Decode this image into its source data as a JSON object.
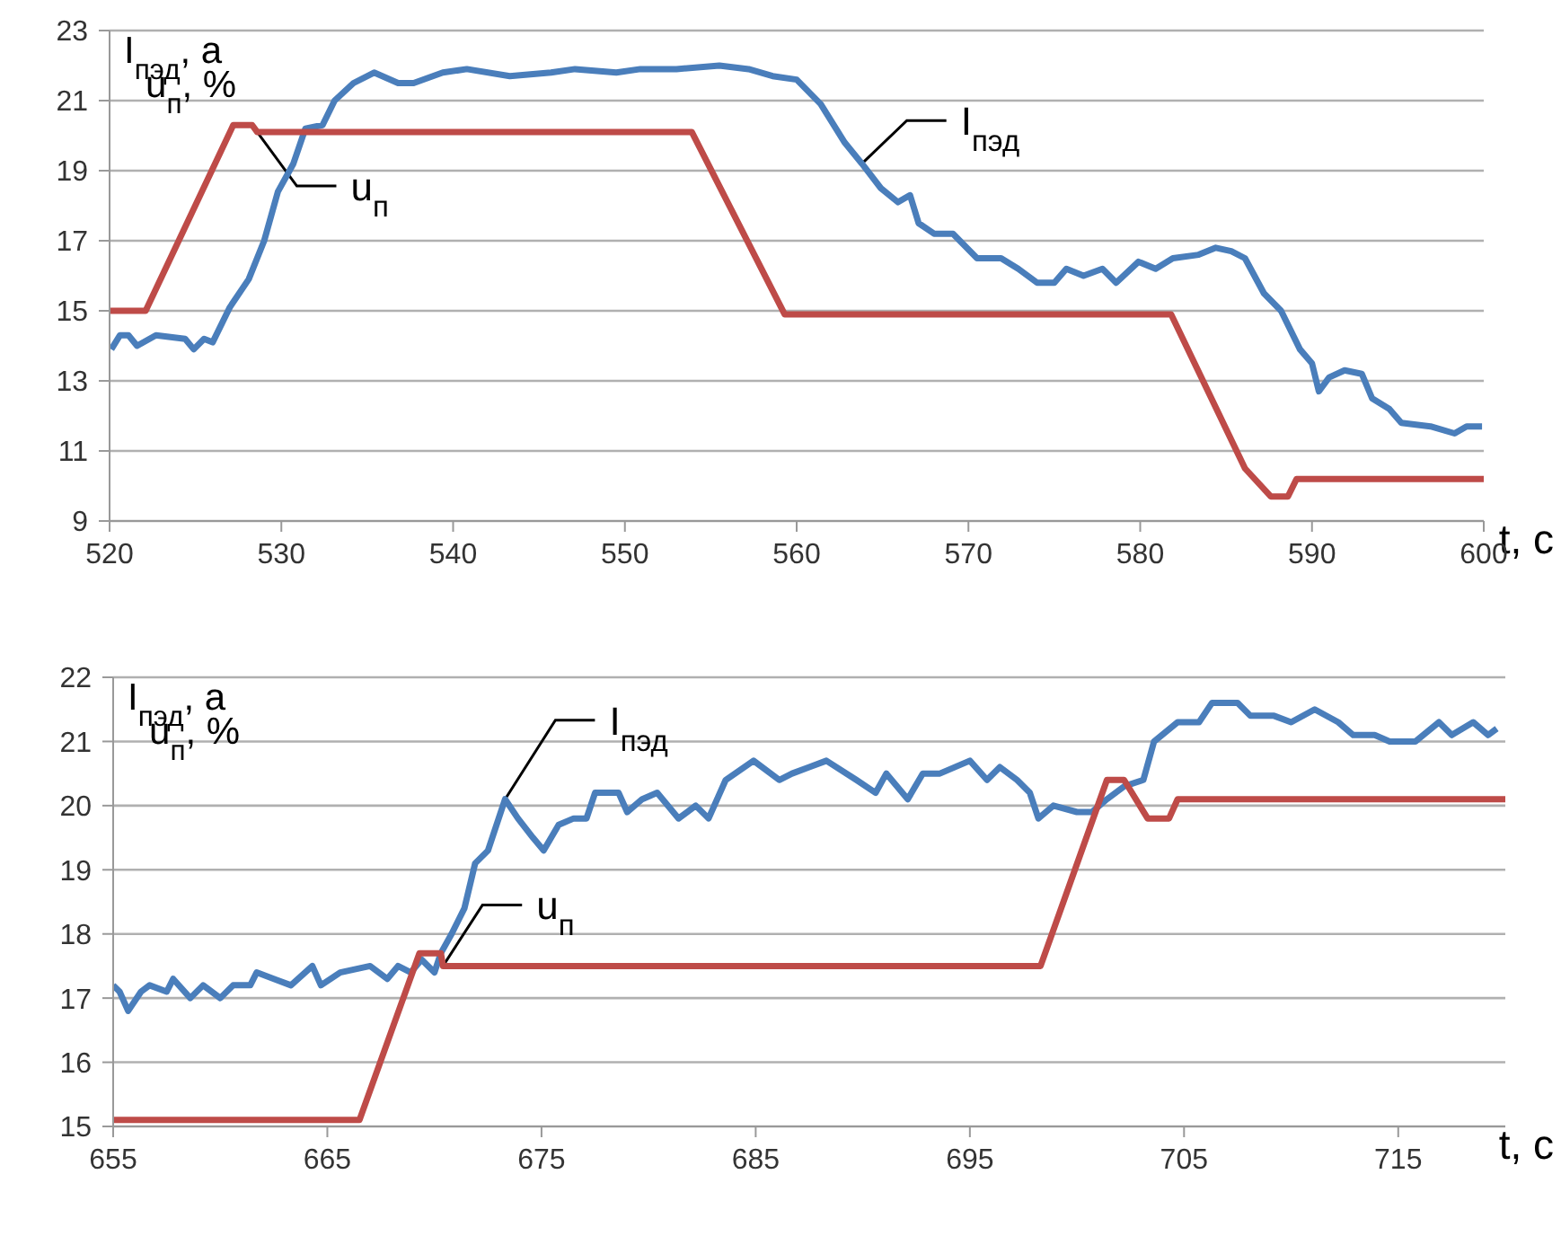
{
  "chart_data": [
    {
      "type": "line",
      "xlabel": "t, c",
      "ylabel": "I$_{пэд}$, a\nu$_{п}$, %",
      "xlim": [
        520,
        600
      ],
      "xticks": [
        520,
        530,
        540,
        550,
        560,
        570,
        580,
        590,
        600
      ],
      "ylim": [
        9,
        23
      ],
      "yticks": [
        9,
        11,
        13,
        15,
        17,
        19,
        21,
        23
      ],
      "grid": "y",
      "legend": false,
      "series": [
        {
          "name": "I$_{пэд}$",
          "color": "#4a7ebb",
          "x": [
            520.1,
            520.6,
            521.1,
            521.6,
            522.7,
            524.4,
            524.9,
            525.5,
            526.0,
            527.0,
            528.1,
            529.0,
            529.8,
            530.7,
            531.4,
            532.4,
            533.1,
            534.2,
            535.4,
            536.8,
            537.7,
            539.4,
            540.8,
            543.3,
            545.7,
            547.1,
            549.5,
            550.9,
            553.0,
            555.5,
            557.2,
            558.6,
            560.0,
            561.4,
            562.8,
            563.8,
            564.9,
            565.9,
            566.6,
            567.1,
            568.0,
            569.1,
            570.5,
            571.9,
            572.9,
            574.0,
            575.0,
            575.7,
            576.7,
            577.8,
            578.6,
            579.9,
            580.9,
            581.9,
            583.4,
            584.4,
            585.3,
            586.1,
            587.2,
            588.2,
            589.3,
            590.0,
            590.4,
            591.0,
            591.9,
            592.9,
            593.5,
            594.5,
            595.2,
            596.9,
            598.3,
            599.0,
            599.9
          ],
          "values": [
            13.9,
            14.3,
            14.3,
            14.0,
            14.3,
            14.2,
            13.9,
            14.2,
            14.1,
            15.1,
            15.9,
            17.0,
            18.4,
            19.2,
            20.2,
            20.3,
            21.0,
            21.5,
            21.8,
            21.5,
            21.5,
            21.8,
            21.9,
            21.7,
            21.8,
            21.9,
            21.8,
            21.9,
            21.9,
            22.0,
            21.9,
            21.7,
            21.6,
            20.9,
            19.8,
            19.2,
            18.5,
            18.1,
            18.3,
            17.5,
            17.2,
            17.2,
            16.5,
            16.5,
            16.2,
            15.8,
            15.8,
            16.2,
            16.0,
            16.2,
            15.8,
            16.4,
            16.2,
            16.5,
            16.6,
            16.8,
            16.7,
            16.5,
            15.5,
            15.0,
            13.9,
            13.5,
            12.7,
            13.1,
            13.3,
            13.2,
            12.5,
            12.2,
            11.8,
            11.7,
            11.5,
            11.7,
            11.7
          ]
        },
        {
          "name": "u$_{п}$",
          "color": "#be4b48",
          "x": [
            520,
            522.1,
            527.2,
            528.3,
            528.6,
            553.9,
            559.3,
            581.8,
            586.1,
            587.6,
            588.6,
            589.1,
            600
          ],
          "values": [
            15,
            15,
            20.3,
            20.3,
            20.1,
            20.1,
            14.9,
            14.9,
            10.5,
            9.7,
            9.7,
            10.2,
            10.2
          ]
        }
      ]
    },
    {
      "type": "line",
      "xlabel": "t, c",
      "ylabel": "I$_{пэд}$, a\nu$_{п}$, %",
      "xlim": [
        655,
        720
      ],
      "xticks": [
        655,
        665,
        675,
        685,
        695,
        705,
        715
      ],
      "ylim": [
        15,
        22
      ],
      "yticks": [
        15,
        16,
        17,
        18,
        19,
        20,
        21,
        22
      ],
      "grid": "y",
      "legend": false,
      "series": [
        {
          "name": "I$_{пэд}$",
          "color": "#4a7ebb",
          "x": [
            655,
            655.3,
            655.7,
            656.3,
            656.7,
            657.5,
            657.8,
            658.6,
            659.2,
            660.0,
            660.6,
            661.4,
            661.7,
            662.5,
            663.3,
            664.3,
            664.7,
            665.6,
            667.0,
            667.8,
            668.3,
            668.9,
            669.4,
            670.0,
            670.3,
            670.8,
            671.4,
            671.9,
            672.5,
            673.3,
            673.9,
            674.6,
            675.1,
            675.8,
            676.5,
            677.1,
            677.5,
            678.6,
            679.0,
            679.7,
            680.4,
            681.4,
            682.2,
            682.8,
            683.6,
            684.9,
            686.1,
            686.7,
            687.5,
            688.3,
            689.7,
            690.6,
            691.1,
            692.1,
            692.8,
            693.6,
            695.0,
            695.8,
            696.4,
            697.2,
            697.8,
            698.2,
            698.9,
            700.0,
            700.7,
            701.4,
            702.2,
            703.1,
            703.6,
            704.7,
            705.7,
            706.3,
            707.5,
            708.1,
            709.2,
            710.0,
            711.1,
            712.2,
            712.9,
            713.9,
            714.6,
            715.8,
            716.9,
            717.5,
            718.5,
            719.2,
            719.6
          ],
          "values": [
            17.2,
            17.1,
            16.8,
            17.1,
            17.2,
            17.1,
            17.3,
            17.0,
            17.2,
            17.0,
            17.2,
            17.2,
            17.4,
            17.3,
            17.2,
            17.5,
            17.2,
            17.4,
            17.5,
            17.3,
            17.5,
            17.4,
            17.6,
            17.4,
            17.7,
            18.0,
            18.4,
            19.1,
            19.3,
            20.1,
            19.8,
            19.5,
            19.3,
            19.7,
            19.8,
            19.8,
            20.2,
            20.2,
            19.9,
            20.1,
            20.2,
            19.8,
            20.0,
            19.8,
            20.4,
            20.7,
            20.4,
            20.5,
            20.6,
            20.7,
            20.4,
            20.2,
            20.5,
            20.1,
            20.5,
            20.5,
            20.7,
            20.4,
            20.6,
            20.4,
            20.2,
            19.8,
            20.0,
            19.9,
            19.9,
            20.1,
            20.3,
            20.4,
            21.0,
            21.3,
            21.3,
            21.6,
            21.6,
            21.4,
            21.4,
            21.3,
            21.5,
            21.3,
            21.1,
            21.1,
            21.0,
            21.0,
            21.3,
            21.1,
            21.3,
            21.1,
            21.2
          ]
        },
        {
          "name": "u$_{п}$",
          "color": "#be4b48",
          "x": [
            655,
            666.5,
            669.3,
            670.3,
            670.4,
            698.3,
            701.4,
            702.2,
            703.3,
            704.3,
            704.7,
            720
          ],
          "values": [
            15.1,
            15.1,
            17.7,
            17.7,
            17.5,
            17.5,
            20.4,
            20.4,
            19.8,
            19.8,
            20.1,
            20.1
          ]
        }
      ]
    }
  ]
}
